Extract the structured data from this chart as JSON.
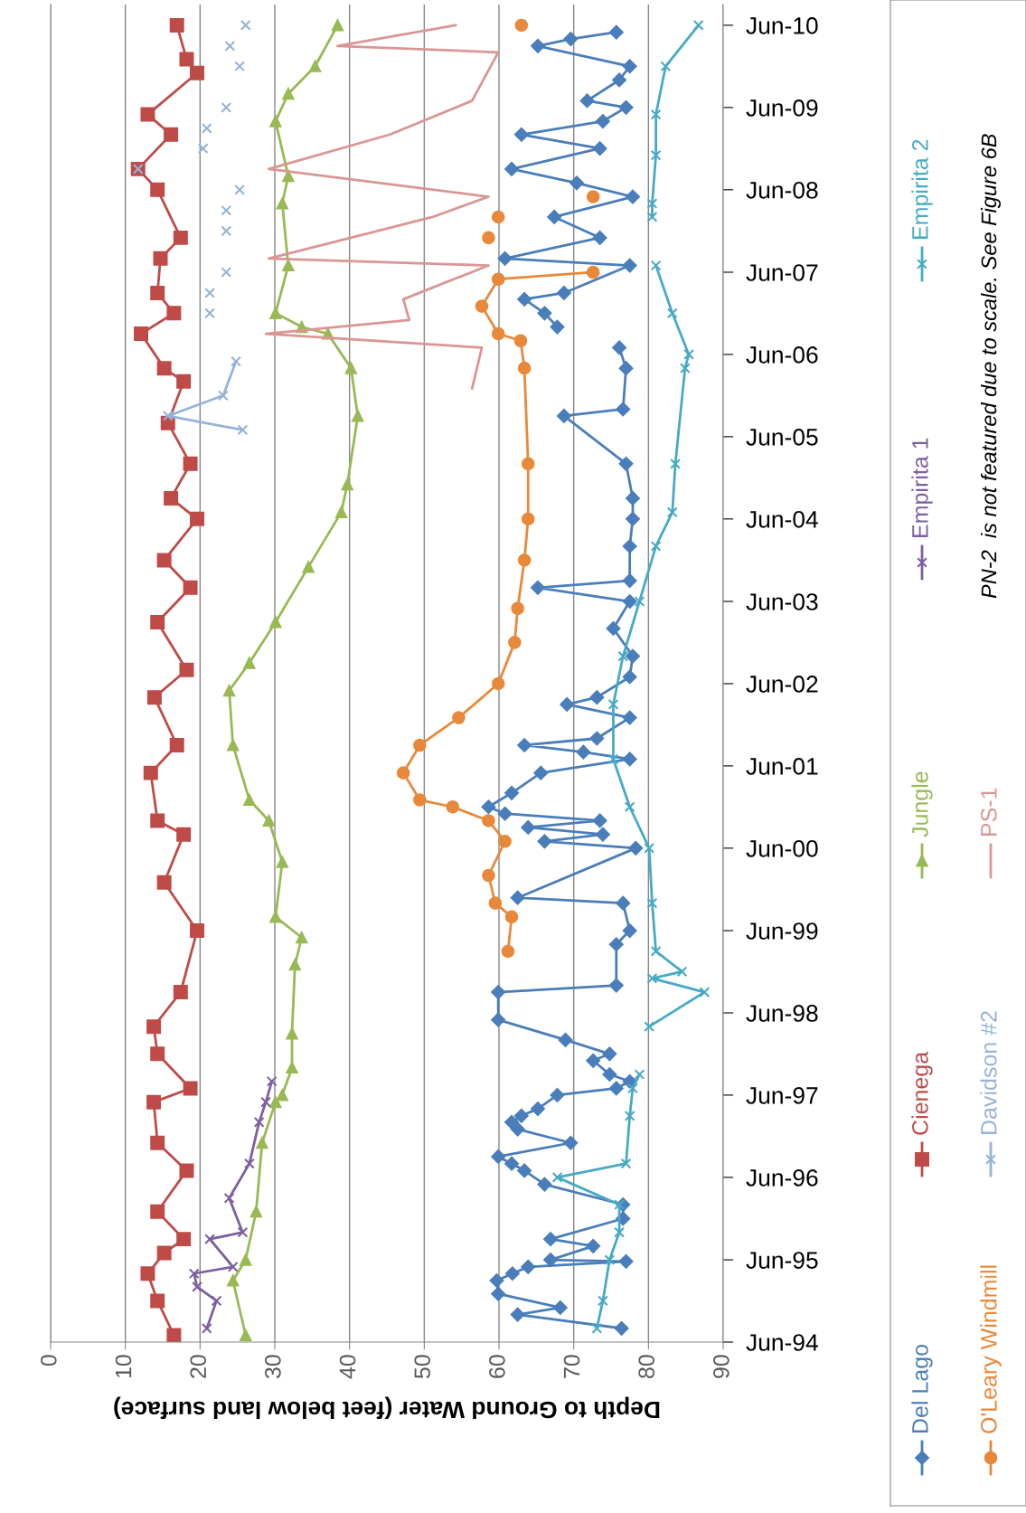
{
  "chart_data": {
    "type": "line",
    "orientation": "horizontal",
    "xlabel": "Depth to Ground Water (feet below land surface)",
    "annotations": [
      "PN-2  is not featured due to scale. See Figure 6B"
    ],
    "xlim": [
      0,
      90
    ],
    "xticks": [
      0,
      10,
      20,
      30,
      40,
      50,
      60,
      70,
      80,
      90
    ],
    "ylim": [
      "1994-06",
      "2010-09"
    ],
    "yticks": [
      {
        "value": "1994-06",
        "label": "Jun-94"
      },
      {
        "value": "1995-06",
        "label": "Jun-95"
      },
      {
        "value": "1996-06",
        "label": "Jun-96"
      },
      {
        "value": "1997-06",
        "label": "Jun-97"
      },
      {
        "value": "1998-06",
        "label": "Jun-98"
      },
      {
        "value": "1999-06",
        "label": "Jun-99"
      },
      {
        "value": "2000-06",
        "label": "Jun-00"
      },
      {
        "value": "2001-06",
        "label": "Jun-01"
      },
      {
        "value": "2002-06",
        "label": "Jun-02"
      },
      {
        "value": "2003-06",
        "label": "Jun-03"
      },
      {
        "value": "2004-06",
        "label": "Jun-04"
      },
      {
        "value": "2005-06",
        "label": "Jun-05"
      },
      {
        "value": "2006-06",
        "label": "Jun-06"
      },
      {
        "value": "2007-06",
        "label": "Jun-07"
      },
      {
        "value": "2008-06",
        "label": "Jun-08"
      },
      {
        "value": "2009-06",
        "label": "Jun-09"
      },
      {
        "value": "2010-06",
        "label": "Jun-10"
      }
    ],
    "grid": "x",
    "legend": "right",
    "series": [
      {
        "name": "Del Lago",
        "color": "#4a7ebb",
        "marker": "diamond",
        "x": [
          "1994-08",
          "1994-10",
          "1994-11",
          "1995-01",
          "1995-03",
          "1995-04",
          "1995-05",
          "1995-05-25",
          "1995-06",
          "1995-08",
          "1995-09",
          "1995-12",
          "1996-02",
          "1996-05",
          "1996-07",
          "1996-08",
          "1996-09",
          "1996-11",
          "1997-01",
          "1997-02",
          "1997-03",
          "1997-04",
          "1997-06",
          "1997-07",
          "1997-08",
          "1997-09",
          "1997-11",
          "1997-12",
          "1998-02",
          "1998-05",
          "1998-09",
          "1998-10",
          "1999-04",
          "1999-06",
          "1999-10",
          "1999-10-25",
          "2000-06",
          "2000-07",
          "2000-08",
          "2000-09",
          "2000-10",
          "2000-11",
          "2000-12",
          "2001-02",
          "2001-05",
          "2001-07",
          "2001-08",
          "2001-09",
          "2001-10",
          "2002-01",
          "2002-03",
          "2002-04",
          "2002-07",
          "2002-10",
          "2003-02",
          "2003-06",
          "2003-08",
          "2003-09",
          "2004-02",
          "2004-06",
          "2004-09",
          "2005-02",
          "2005-09",
          "2005-10",
          "2006-04",
          "2006-07",
          "2006-08",
          "2006-10",
          "2006-12",
          "2007-02",
          "2007-03",
          "2007-07",
          "2007-08",
          "2007-11",
          "2008-02",
          "2008-05",
          "2008-07",
          "2008-09",
          "2008-12",
          "2009-02",
          "2009-04",
          "2009-06",
          "2009-07",
          "2009-10",
          "2009-12",
          "2010-03",
          "2010-04",
          "2010-05"
        ],
        "values": [
          76.4,
          62.5,
          68.2,
          59.9,
          59.7,
          61.8,
          63.9,
          77.0,
          66.9,
          72.6,
          66.9,
          76.6,
          76.6,
          66.1,
          63.4,
          61.7,
          59.9,
          69.6,
          62.5,
          61.7,
          63.0,
          65.2,
          67.8,
          75.7,
          77.5,
          74.8,
          72.6,
          74.8,
          68.9,
          59.9,
          59.9,
          75.7,
          75.7,
          77.5,
          76.6,
          62.5,
          78.3,
          66.1,
          73.9,
          63.9,
          73.5,
          60.8,
          58.6,
          61.7,
          65.6,
          77.5,
          71.3,
          63.4,
          73.1,
          77.5,
          69.1,
          73.1,
          77.5,
          77.9,
          75.3,
          77.5,
          65.2,
          77.5,
          77.5,
          77.9,
          77.9,
          77.0,
          68.7,
          76.6,
          77.0,
          76.1,
          null,
          67.8,
          66.1,
          63.4,
          68.7,
          77.5,
          60.8,
          73.5,
          67.4,
          77.9,
          70.4,
          61.7,
          73.5,
          63.0,
          73.9,
          77.0,
          71.8,
          76.1,
          77.5,
          65.2,
          69.6,
          75.7
        ]
      },
      {
        "name": "Cienega",
        "color": "#be4b48",
        "marker": "square",
        "x": [
          "1994-07",
          "1994-12",
          "1995-04",
          "1995-07",
          "1995-09",
          "1996-01",
          "1996-07",
          "1996-11",
          "1997-05",
          "1997-07",
          "1997-12",
          "1998-04",
          "1998-09",
          "1999-06",
          "2000-01",
          "2000-08",
          "2000-10",
          "2001-05",
          "2001-09",
          "2002-04",
          "2002-08",
          "2003-03",
          "2003-08",
          "2003-12",
          "2004-06",
          "2004-09",
          "2005-02",
          "2005-08",
          "2006-02",
          "2006-04",
          "2006-09",
          "2006-12",
          "2007-03",
          "2007-08",
          "2007-11",
          "2008-06",
          "2008-09",
          "2009-02",
          "2009-05",
          "2009-11",
          "2010-01",
          "2010-06"
        ],
        "values": [
          16.5,
          14.3,
          13.0,
          15.2,
          17.8,
          14.3,
          18.2,
          14.3,
          13.8,
          18.7,
          14.3,
          13.8,
          17.4,
          19.6,
          15.2,
          17.8,
          14.3,
          13.4,
          16.9,
          13.9,
          18.2,
          14.3,
          18.7,
          15.2,
          19.6,
          16.1,
          18.7,
          15.7,
          17.8,
          15.2,
          12.1,
          16.5,
          14.3,
          14.7,
          17.4,
          14.3,
          11.7,
          16.1,
          13.0,
          19.6,
          18.2,
          16.9
        ]
      },
      {
        "name": "Jungle",
        "color": "#98b954",
        "marker": "triangle",
        "x": [
          "1994-07",
          "1995-03",
          "1995-06",
          "1996-01",
          "1996-11",
          "1997-05",
          "1997-06",
          "1997-10",
          "1998-03",
          "1999-01",
          "1999-05",
          "1999-08",
          "2000-04",
          "2000-10",
          "2001-01",
          "2001-09",
          "2002-05",
          "2002-09",
          "2003-03",
          "2003-11",
          "2004-07",
          "2004-11",
          "2005-09",
          "2006-04",
          "2006-09",
          "2006-10",
          "2006-12",
          "2007-07",
          "2008-04",
          "2008-08",
          "2009-04",
          "2009-08",
          "2009-12",
          "2010-06"
        ],
        "values": [
          26.1,
          24.4,
          26.1,
          27.5,
          28.3,
          30.1,
          31.0,
          32.3,
          32.3,
          32.7,
          33.6,
          30.1,
          31.0,
          29.2,
          26.6,
          24.4,
          23.9,
          26.6,
          30.1,
          34.5,
          38.9,
          39.7,
          41.1,
          40.2,
          37.1,
          33.6,
          30.1,
          31.8,
          31.0,
          31.8,
          30.1,
          31.8,
          35.4,
          38.4
        ]
      },
      {
        "name": "Empirita 1",
        "color": "#7d5fa0",
        "marker": "cross",
        "x": [
          "1994-08",
          "1994-12",
          "1995-02",
          "1995-04",
          "1995-05",
          "1995-09",
          "1995-10",
          "1996-03",
          "1996-08",
          "1997-02",
          "1997-05",
          "1997-08"
        ],
        "values": [
          20.9,
          22.2,
          19.6,
          19.2,
          24.4,
          21.3,
          25.7,
          23.9,
          26.6,
          27.9,
          28.8,
          29.6
        ]
      },
      {
        "name": "Empirita 2",
        "color": "#46aac5",
        "marker": "cross",
        "x": [
          "1994-08",
          "1994-12",
          "1995-06",
          "1995-10",
          "1996-02",
          "1996-06",
          "1996-08",
          "1997-03",
          "1997-07",
          "1997-09",
          "1997-12",
          "1998-04",
          "1998-09",
          "1998-11",
          "1998-12",
          "1999-03",
          "1999-10",
          "2000-06",
          "2000-12",
          "2001-07",
          "2002-03",
          "2002-10",
          "2003-06",
          "2004-02",
          "2004-07",
          "2005-02",
          "2006-04",
          "2006-06",
          "2006-12",
          "2007-07",
          "2007-10",
          "2008-02",
          "2008-04",
          "2008-11",
          "2009-05",
          "2009-12",
          "2010-06"
        ],
        "values": [
          73.1,
          73.9,
          74.8,
          76.1,
          76.1,
          67.8,
          77.0,
          77.5,
          77.9,
          78.8,
          null,
          80.1,
          87.5,
          80.5,
          84.5,
          81.0,
          80.5,
          80.1,
          77.5,
          75.3,
          75.3,
          76.6,
          78.8,
          81.0,
          83.2,
          83.6,
          84.9,
          85.4,
          83.2,
          81.0,
          null,
          80.5,
          80.5,
          81.0,
          81.0,
          82.3,
          86.7
        ]
      },
      {
        "name": "O'Leary Windmill",
        "color": "#e8883a",
        "marker": "circle",
        "x": [
          "1999-03",
          "1999-08",
          "1999-10",
          "2000-02",
          "2000-07",
          "2000-10",
          "2000-12",
          "2001-01",
          "2001-05",
          "2001-09",
          "2002-01",
          "2002-06",
          "2002-12",
          "2003-05",
          "2003-12",
          "2004-06",
          "2005-02",
          "2006-04",
          "2006-08",
          "2006-09",
          "2007-01",
          "2007-05",
          "2007-06",
          "2007-08",
          "2007-11",
          "2008-01",
          "2008-02",
          "2008-04",
          "2008-05",
          "2009-06",
          "2010-06"
        ],
        "values": [
          61.2,
          61.7,
          59.5,
          58.6,
          60.8,
          58.6,
          53.8,
          49.4,
          47.2,
          49.4,
          54.6,
          59.9,
          62.1,
          62.5,
          63.4,
          63.9,
          63.9,
          63.4,
          62.9,
          59.9,
          57.7,
          59.9,
          72.6,
          null,
          58.6,
          null,
          59.9,
          null,
          72.6,
          null,
          63.0
        ]
      },
      {
        "name": "Davidson #2",
        "color": "#95b3d7",
        "marker": "cross",
        "x": [
          "2005-07",
          "2005-09",
          "2005-12",
          "2006-05",
          "2006-08",
          "2006-12",
          "2007-01",
          "2007-03",
          "2007-05",
          "2007-06",
          "2007-10",
          "2007-12",
          "2008-01",
          "2008-03",
          "2008-04",
          "2008-06",
          "2008-07",
          "2008-09",
          "2008-10",
          "2008-12",
          "2009-01",
          "2009-03",
          "2009-04",
          "2009-06",
          "2009-08",
          "2009-12",
          "2010-01",
          "2010-03",
          "2010-04",
          "2010-06"
        ],
        "values": [
          25.7,
          15.7,
          23.1,
          24.8,
          null,
          21.3,
          null,
          21.3,
          null,
          23.5,
          null,
          23.5,
          null,
          23.5,
          null,
          25.3,
          null,
          11.7,
          null,
          20.4,
          null,
          20.9,
          null,
          23.5,
          null,
          25.3,
          null,
          24.0,
          null,
          26.1
        ]
      },
      {
        "name": "PS-1",
        "color": "#d99694",
        "marker": "none",
        "x": [
          "2006-01",
          "2006-07",
          "2006-09",
          "2006-11",
          "2007-02",
          "2007-07",
          "2007-08",
          "2008-02",
          "2008-05",
          "2008-09",
          "2009-02",
          "2009-07",
          "2010-02",
          "2010-03",
          "2010-06"
        ],
        "values": [
          56.4,
          57.7,
          28.8,
          48.0,
          47.2,
          58.6,
          29.2,
          51.1,
          58.6,
          29.2,
          45.4,
          56.4,
          59.9,
          38.4,
          54.2
        ]
      }
    ]
  }
}
